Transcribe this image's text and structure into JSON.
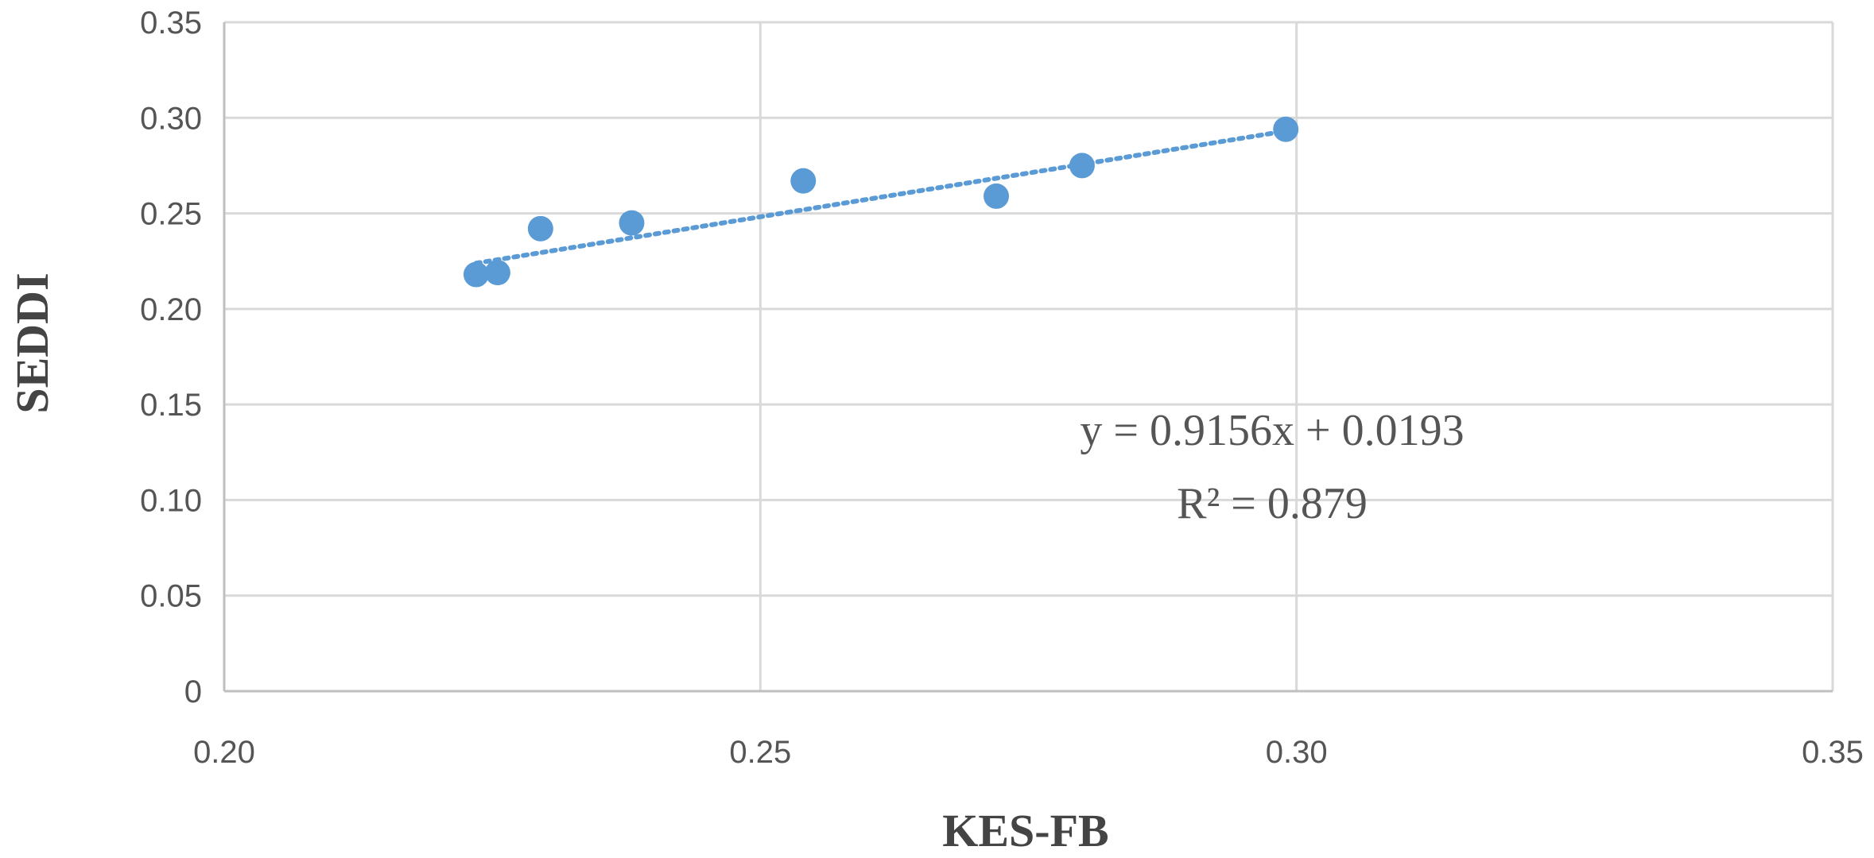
{
  "chart_data": {
    "type": "scatter",
    "title": "",
    "xlabel": "KES-FB",
    "ylabel": "SEDDI",
    "xlim": [
      0.2,
      0.35
    ],
    "ylim": [
      0,
      0.35
    ],
    "x_ticks": [
      "0.20",
      "0.25",
      "0.30",
      "0.35"
    ],
    "y_ticks": [
      "0",
      "0.05",
      "0.10",
      "0.15",
      "0.20",
      "0.25",
      "0.30",
      "0.35"
    ],
    "grid": true,
    "legend": "none",
    "series": [
      {
        "points": [
          {
            "x": 0.2235,
            "y": 0.218
          },
          {
            "x": 0.2255,
            "y": 0.219
          },
          {
            "x": 0.2295,
            "y": 0.242
          },
          {
            "x": 0.238,
            "y": 0.245
          },
          {
            "x": 0.254,
            "y": 0.267
          },
          {
            "x": 0.272,
            "y": 0.259
          },
          {
            "x": 0.28,
            "y": 0.275
          },
          {
            "x": 0.299,
            "y": 0.294
          }
        ],
        "color": "#5b9bd5"
      }
    ],
    "trendline": {
      "style": "dotted",
      "slope": 0.9156,
      "intercept": 0.0193,
      "x_range": [
        0.2235,
        0.299
      ],
      "color": "#5b9bd5",
      "equation_label": "y = 0.9156x + 0.0193",
      "r2_label": "R² = 0.879"
    }
  }
}
